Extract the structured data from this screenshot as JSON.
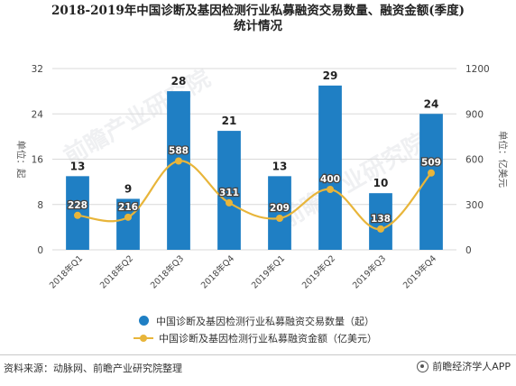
{
  "title_line1": "2018-2019年中国诊断及基因检测行业私募融资交易数量、融资金额(季度)",
  "title_line2": "统计情况",
  "left_axis_label": "单位：起",
  "right_axis_label": "单位：亿美元",
  "legend": {
    "bar": "中国诊断及基因检测行业私募融资交易数量（起）",
    "line": "中国诊断及基因检测行业私募融资金额（亿美元）"
  },
  "source": "资料来源：动脉网、前瞻产业研究院整理",
  "brand": "前瞻经济学人APP",
  "watermark": "前瞻产业研究院",
  "colors": {
    "bar": "#1f7fc4",
    "line": "#e8b53a",
    "grid": "#d9d9d9"
  },
  "chart_data": {
    "type": "bar",
    "categories": [
      "2018年Q1",
      "2018年Q2",
      "2018年Q3",
      "2018年Q4",
      "2019年Q1",
      "2019年Q2",
      "2019年Q3",
      "2019年Q4"
    ],
    "series": [
      {
        "name": "中国诊断及基因检测行业私募融资交易数量（起）",
        "type": "bar",
        "axis": "left",
        "values": [
          13,
          9,
          28,
          21,
          13,
          29,
          10,
          24
        ]
      },
      {
        "name": "中国诊断及基因检测行业私募融资金额（亿美元）",
        "type": "line",
        "axis": "right",
        "smooth": true,
        "values": [
          228,
          216,
          588,
          311,
          209,
          400,
          138,
          509
        ]
      }
    ],
    "ylim_left": [
      0,
      32
    ],
    "yticks_left": [
      0,
      8,
      16,
      24,
      32
    ],
    "ylim_right": [
      0,
      1200
    ],
    "yticks_right": [
      0,
      300,
      600,
      900,
      1200
    ],
    "grid": true,
    "legend_position": "bottom"
  }
}
